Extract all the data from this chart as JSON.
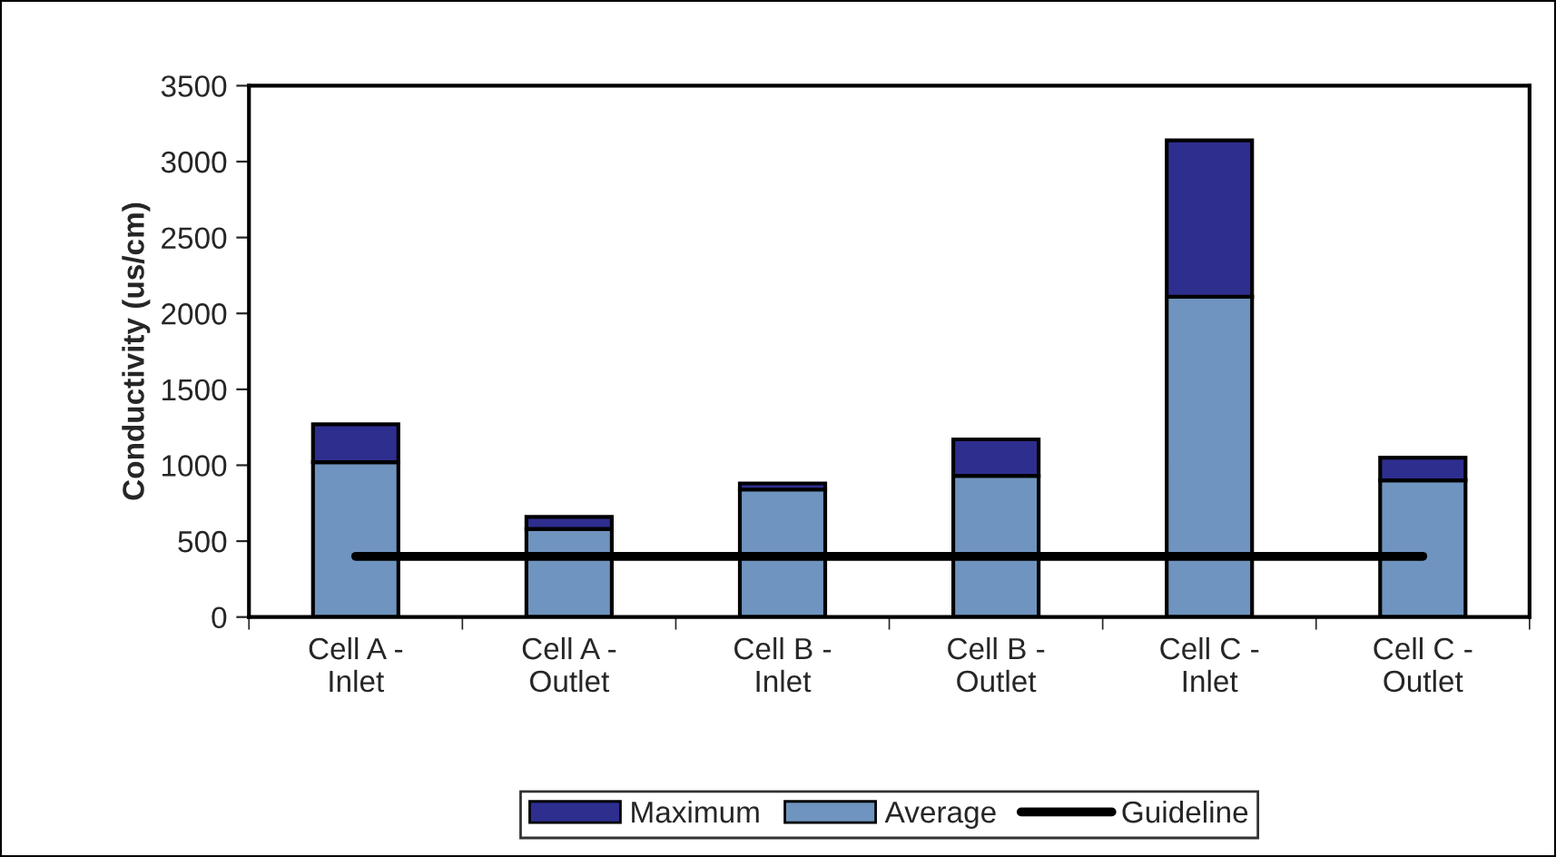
{
  "chart_data": {
    "type": "bar",
    "stacked": true,
    "ylabel": "Conductivity (us/cm)",
    "categories": [
      "Cell A -\nInlet",
      "Cell A -\nOutlet",
      "Cell B -\nInlet",
      "Cell B -\nOutlet",
      "Cell C -\nInlet",
      "Cell C -\nOutlet"
    ],
    "series": [
      {
        "name": "Average",
        "color": "#6f94bf",
        "values": [
          1020,
          580,
          840,
          930,
          2110,
          900
        ]
      },
      {
        "name": "Maximum",
        "color": "#2e2e8f",
        "values": [
          250,
          80,
          40,
          240,
          1030,
          150
        ]
      },
      {
        "name": "Guideline",
        "type": "line",
        "color": "#000000",
        "values": [
          400,
          400,
          400,
          400,
          400,
          400
        ]
      }
    ],
    "ylim": [
      0,
      3500
    ],
    "yticks": [
      0,
      500,
      1000,
      1500,
      2000,
      2500,
      3000,
      3500
    ],
    "grid": false,
    "legend": "bottom"
  }
}
